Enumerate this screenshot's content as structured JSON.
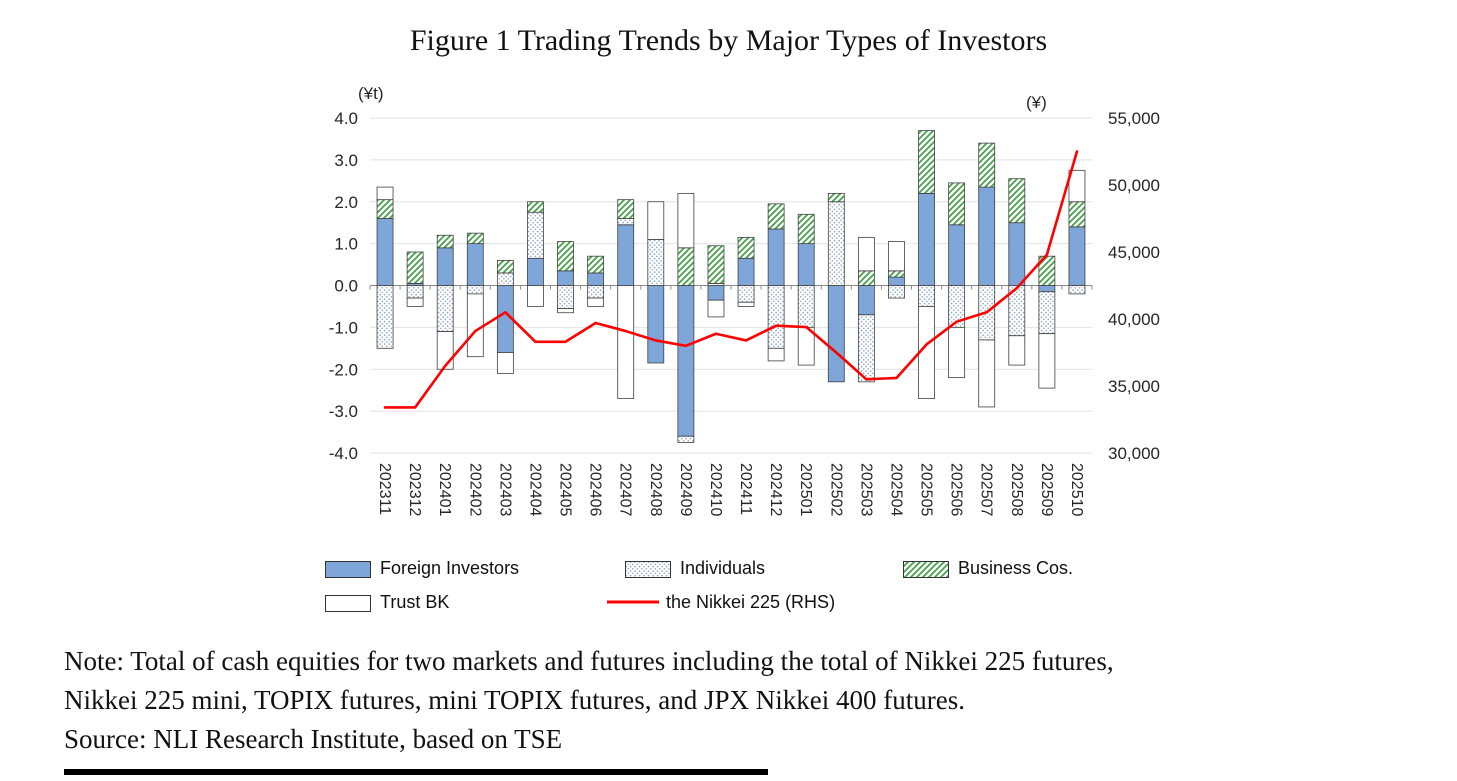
{
  "chart_data": {
    "type": "bar",
    "subtype": "stacked-bar-with-line",
    "title": "Figure 1 Trading Trends by Major Types of Investors",
    "left_axis": {
      "label": "(¥t)",
      "min": -4,
      "max": 4,
      "step": 1,
      "ticks": [
        "4.0",
        "3.0",
        "2.0",
        "1.0",
        "0.0",
        "-1.0",
        "-2.0",
        "-3.0",
        "-4.0"
      ]
    },
    "right_axis": {
      "label": "(¥)",
      "min": 30000,
      "max": 55000,
      "step": 5000,
      "ticks": [
        "55,000",
        "50,000",
        "45,000",
        "40,000",
        "35,000",
        "30,000"
      ]
    },
    "grid": true,
    "legend_position": "bottom",
    "categories": [
      "202311",
      "202312",
      "202401",
      "202402",
      "202403",
      "202404",
      "202405",
      "202406",
      "202407",
      "202408",
      "202409",
      "202410",
      "202411",
      "202412",
      "202501",
      "202502",
      "202503",
      "202504",
      "202505",
      "202506",
      "202507",
      "202508",
      "202509",
      "202510"
    ],
    "bar_series": [
      {
        "name": "Foreign Investors",
        "style": "solid-blue",
        "color": "#7EA6D9",
        "values": [
          1.6,
          0.05,
          0.9,
          1.0,
          -1.6,
          0.65,
          0.35,
          0.3,
          1.45,
          -1.85,
          -3.6,
          -0.35,
          0.65,
          1.35,
          1.0,
          -2.3,
          -0.7,
          0.2,
          2.2,
          1.45,
          2.35,
          1.5,
          -0.15,
          1.4
        ]
      },
      {
        "name": "Individuals",
        "style": "dotted",
        "color": "#93A9C4",
        "values": [
          -1.5,
          -0.3,
          -1.1,
          -0.2,
          0.3,
          1.1,
          -0.55,
          -0.3,
          0.15,
          1.1,
          -0.15,
          0.05,
          -0.4,
          -1.5,
          -1.0,
          2.0,
          -1.6,
          -0.3,
          -0.5,
          -1.0,
          -1.3,
          -1.2,
          -1.0,
          -0.2
        ]
      },
      {
        "name": "Business Cos.",
        "style": "green-hatch",
        "color": "#43A047",
        "values": [
          0.45,
          0.75,
          0.3,
          0.25,
          0.3,
          0.25,
          0.7,
          0.4,
          0.45,
          0.0,
          0.9,
          0.9,
          0.5,
          0.6,
          0.7,
          0.2,
          0.35,
          0.15,
          1.5,
          1.0,
          1.05,
          1.05,
          0.7,
          0.6
        ]
      },
      {
        "name": "Trust BK",
        "style": "white",
        "color": "#FFFFFF",
        "values": [
          0.3,
          -0.2,
          -0.9,
          -1.5,
          -0.5,
          -0.5,
          -0.1,
          -0.2,
          -2.7,
          0.9,
          1.3,
          -0.4,
          -0.1,
          -0.3,
          -0.9,
          0.0,
          0.8,
          0.7,
          -2.2,
          -1.2,
          -1.6,
          -0.7,
          -1.3,
          0.75
        ]
      }
    ],
    "line_series": {
      "name": "the Nikkei 225 (RHS)",
      "color": "#FF0000",
      "axis": "right",
      "values": [
        33400,
        33400,
        36500,
        39100,
        40500,
        38300,
        38300,
        39700,
        39100,
        38400,
        38000,
        38900,
        38400,
        39500,
        39400,
        37500,
        35500,
        35600,
        38100,
        39800,
        40500,
        42300,
        44800,
        52500
      ]
    }
  },
  "note": {
    "line1": "Note: Total of cash equities for two markets and futures including the total of Nikkei 225 futures,",
    "line2": "Nikkei 225 mini, TOPIX futures, mini TOPIX futures, and JPX Nikkei 400 futures.",
    "source": "Source: NLI Research Institute, based on TSE"
  }
}
